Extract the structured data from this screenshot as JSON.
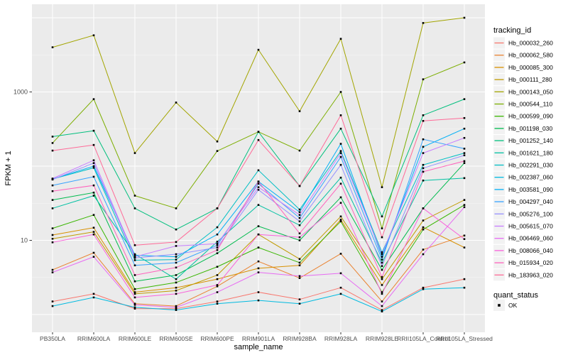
{
  "figure": {
    "background": "#FFFFFF",
    "panel_background": "#EBEBEB",
    "gridline_color": "#FFFFFF",
    "point_color": "#000000",
    "axis_text_color": "#4D4D4D",
    "tick_mark_color": "#333333"
  },
  "chart_data": {
    "type": "line",
    "title": "",
    "xlabel": "sample_name",
    "ylabel": "FPKM + 1",
    "y_scale": "log10",
    "ylim": [
      1,
      12000
    ],
    "y_major_gridlines": [
      1,
      10,
      100,
      1000,
      10000
    ],
    "y_axis_ticks": [
      {
        "label": "1000",
        "value": 1000
      },
      {
        "label": "10",
        "value": 10
      }
    ],
    "grid": "on",
    "legend_position": "right",
    "point_marker": "filled-black-square",
    "categories": [
      "PB350LA",
      "RRIM600LA",
      "RRIM600LE",
      "RRIM600SE",
      "RRIM600PE",
      "RRIM901LA",
      "RRIM928BA",
      "RRIM928LA",
      "RRIM928LE",
      "RRII105LA_Control",
      "RRII105LA_Stressed"
    ],
    "series": [
      {
        "name": "Hb_000032_260",
        "color": "#F8766D",
        "values": [
          1.5,
          1.9,
          1.2,
          1.2,
          1.5,
          2.0,
          1.6,
          2.3,
          1.15,
          2.3,
          3.0
        ]
      },
      {
        "name": "Hb_000062_580",
        "color": "#EA8331",
        "values": [
          4.0,
          6.8,
          1.4,
          1.3,
          2.4,
          5.2,
          3.1,
          6.6,
          1.5,
          7.5,
          11.6
        ]
      },
      {
        "name": "Hb_000085_300",
        "color": "#D89000",
        "values": [
          11.8,
          14.8,
          2.0,
          2.3,
          3.0,
          4.2,
          4.6,
          19.0,
          2.5,
          15.0,
          8.0
        ]
      },
      {
        "name": "Hb_000111_280",
        "color": "#C09B00",
        "values": [
          10.5,
          13.0,
          1.9,
          2.1,
          3.4,
          12.0,
          5.6,
          21.0,
          3.0,
          18.5,
          35.0
        ]
      },
      {
        "name": "Hb_000143_050",
        "color": "#A3A500",
        "values": [
          4000,
          5800,
          150,
          720,
          215,
          3700,
          550,
          5200,
          52,
          8500,
          10000
        ]
      },
      {
        "name": "Hb_000544_110",
        "color": "#7CAE00",
        "values": [
          205,
          800,
          40,
          27,
          160,
          290,
          162,
          1000,
          14.5,
          1480,
          2500
        ]
      },
      {
        "name": "Hb_000599_090",
        "color": "#39B600",
        "values": [
          14.5,
          22,
          2.2,
          2.7,
          4.4,
          8.0,
          5.0,
          18.0,
          2.0,
          14.0,
          30
        ]
      },
      {
        "name": "Hb_001198_030",
        "color": "#00BB4E",
        "values": [
          35,
          44,
          2.8,
          3.4,
          6.7,
          15.5,
          10.0,
          38,
          4.0,
          27,
          110
        ]
      },
      {
        "name": "Hb_001252_140",
        "color": "#00BF7D",
        "values": [
          250,
          300,
          27,
          14,
          27,
          290,
          54,
          320,
          21,
          485,
          800
        ]
      },
      {
        "name": "Hb_001621_180",
        "color": "#00C1A3",
        "values": [
          27,
          40,
          6.5,
          3.0,
          9.6,
          30,
          16,
          70,
          5.0,
          64,
          69
        ]
      },
      {
        "name": "Hb_002291_030",
        "color": "#00BFC4",
        "values": [
          67,
          95,
          5.4,
          5.5,
          15,
          88,
          26,
          160,
          6.9,
          104,
          150
        ]
      },
      {
        "name": "Hb_002387_060",
        "color": "#00BAE0",
        "values": [
          1.3,
          1.7,
          1.25,
          1.15,
          1.4,
          1.55,
          1.4,
          1.9,
          1.1,
          2.2,
          2.3
        ]
      },
      {
        "name": "Hb_003581_090",
        "color": "#00B0F6",
        "values": [
          67,
          100,
          6.3,
          6.0,
          12,
          62,
          24,
          200,
          6.0,
          182,
          320
        ]
      },
      {
        "name": "Hb_004297_040",
        "color": "#35A2FF",
        "values": [
          55,
          72,
          4.6,
          5.0,
          8.6,
          58,
          20,
          133,
          5.5,
          230,
          172
        ]
      },
      {
        "name": "Hb_005276_100",
        "color": "#9590FF",
        "values": [
          66,
          110,
          5.8,
          6.5,
          8.0,
          48,
          18,
          104,
          4.5,
          94,
          140
        ]
      },
      {
        "name": "Hb_005615_070",
        "color": "#C77CFF",
        "values": [
          68,
          120,
          6.0,
          8.4,
          9.0,
          52,
          22,
          150,
          6.5,
          150,
          240
        ]
      },
      {
        "name": "Hb_006469_060",
        "color": "#E76BF3",
        "values": [
          3.7,
          6.0,
          1.35,
          1.25,
          2.0,
          3.7,
          3.3,
          3.6,
          1.3,
          6.5,
          28
        ]
      },
      {
        "name": "Hb_008066_040",
        "color": "#FA62DB",
        "values": [
          9.4,
          12,
          1.7,
          1.9,
          2.5,
          12,
          11,
          32,
          1.9,
          27,
          10.4
        ]
      },
      {
        "name": "Hb_015934_020",
        "color": "#FF62BC",
        "values": [
          46,
          55,
          3.4,
          4.3,
          7.4,
          62,
          12.4,
          58,
          3.2,
          84,
          117
        ]
      },
      {
        "name": "Hb_183963_020",
        "color": "#FF6A98",
        "values": [
          162,
          193,
          8.6,
          9.5,
          27,
          225,
          54,
          485,
          11,
          407,
          445
        ]
      }
    ]
  },
  "legend": {
    "tracking": {
      "title": "tracking_id"
    },
    "quant": {
      "title": "quant_status",
      "items": [
        {
          "label": "OK",
          "marker": "black-square"
        }
      ]
    },
    "key_background": "#F2F2F2"
  }
}
